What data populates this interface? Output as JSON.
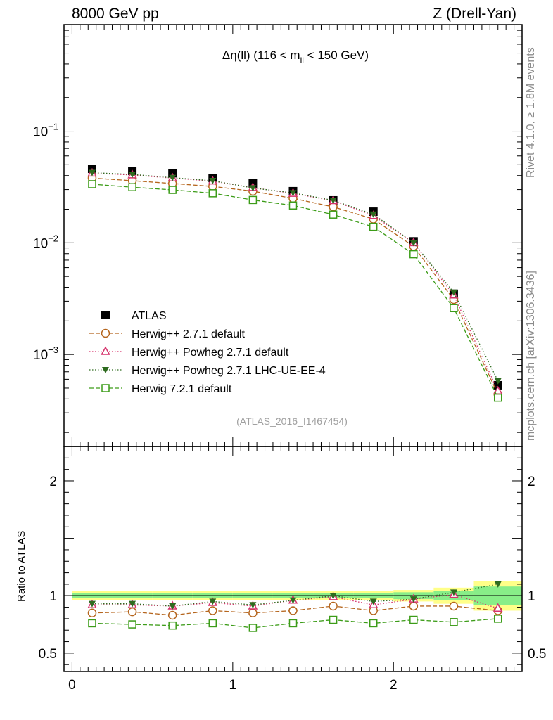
{
  "header": {
    "left": "8000 GeV pp",
    "right": "Z (Drell-Yan)"
  },
  "side_labels": {
    "rivet": "Rivet 4.1.0, ≥ 1.8M events",
    "mcplots": "mcplots.cern.ch [arXiv:1306.3436]"
  },
  "colors": {
    "atlas": "#000000",
    "herwig271": "#b5651d",
    "powheg": "#d6336c",
    "powheg_ue": "#2e6b1f",
    "herwig721": "#3c9c18",
    "band_yellow": "#ffff88",
    "band_green": "#88ee88"
  },
  "chart_data": [
    {
      "type": "line",
      "panel": "main",
      "title": "Δη(ll) (116 < m_ll < 150 GeV)",
      "title_main": "Δη(ll) (116 < m",
      "title_sub": "ll",
      "title_end": " < 150 GeV)",
      "yscale": "log",
      "ylim": [
        0.00015,
        0.9
      ],
      "xlim": [
        -0.05,
        2.8
      ],
      "y_ticks": [
        {
          "value": 0.1,
          "base": "10",
          "exp": "−1"
        },
        {
          "value": 0.01,
          "base": "10",
          "exp": "−2"
        },
        {
          "value": 0.001,
          "base": "10",
          "exp": "−3"
        }
      ],
      "x": [
        0.125,
        0.375,
        0.625,
        0.875,
        1.125,
        1.375,
        1.625,
        1.875,
        2.125,
        2.375,
        2.65
      ],
      "series": [
        {
          "name": "ATLAS",
          "key": "atlas",
          "marker": "square-filled",
          "linestyle": "none",
          "values": [
            0.046,
            0.044,
            0.042,
            0.038,
            0.034,
            0.029,
            0.024,
            0.019,
            0.0103,
            0.0035,
            0.00053
          ]
        },
        {
          "name": "Herwig++ 2.7.1 default",
          "key": "herwig271",
          "marker": "circle-open",
          "linestyle": "dashed",
          "values": [
            0.038,
            0.036,
            0.034,
            0.032,
            0.029,
            0.025,
            0.021,
            0.0163,
            0.0093,
            0.0031,
            0.00044
          ]
        },
        {
          "name": "Herwig++ Powheg 2.7.1 default",
          "key": "powheg",
          "marker": "triangle-open",
          "linestyle": "dotted",
          "values": [
            0.042,
            0.0405,
            0.038,
            0.0357,
            0.0312,
            0.0277,
            0.0238,
            0.0175,
            0.01,
            0.0034,
            0.00047
          ]
        },
        {
          "name": "Herwig++ Powheg 2.7.1 LHC-UE-EE-4",
          "key": "powheg_ue",
          "marker": "triangle-down-filled",
          "linestyle": "dotted",
          "values": [
            0.0425,
            0.041,
            0.0383,
            0.036,
            0.031,
            0.028,
            0.024,
            0.018,
            0.01,
            0.0036,
            0.00058
          ]
        },
        {
          "name": "Herwig 7.2.1 default",
          "key": "herwig721",
          "marker": "square-open",
          "linestyle": "dashed",
          "values": [
            0.0335,
            0.0315,
            0.0298,
            0.0278,
            0.0242,
            0.0216,
            0.0179,
            0.0139,
            0.0079,
            0.0026,
            0.00041
          ]
        }
      ],
      "annotation": "(ATLAS_2016_I1467454)",
      "legend": "left-bottom"
    },
    {
      "type": "line",
      "panel": "ratio",
      "ylabel": "Ratio to ATLAS",
      "ylim": [
        0.34,
        2.3
      ],
      "xlim": [
        -0.05,
        2.8
      ],
      "y_ticks": [
        {
          "value": 0.5,
          "label": "0.5"
        },
        {
          "value": 1,
          "label": "1"
        },
        {
          "value": 2,
          "label": "2"
        }
      ],
      "x_ticks": [
        {
          "value": 0,
          "label": "0"
        },
        {
          "value": 1,
          "label": "1"
        },
        {
          "value": 2,
          "label": "2"
        }
      ],
      "x_edges": [
        0,
        0.25,
        0.5,
        0.75,
        1.0,
        1.25,
        1.5,
        1.75,
        2.0,
        2.25,
        2.5,
        2.8
      ],
      "band_yellow_half": [
        0.04,
        0.04,
        0.04,
        0.04,
        0.04,
        0.04,
        0.04,
        0.04,
        0.05,
        0.07,
        0.13
      ],
      "band_green_half": [
        0.02,
        0.02,
        0.02,
        0.02,
        0.02,
        0.02,
        0.02,
        0.02,
        0.03,
        0.04,
        0.08
      ],
      "x": [
        0.125,
        0.375,
        0.625,
        0.875,
        1.125,
        1.375,
        1.625,
        1.875,
        2.125,
        2.375,
        2.65
      ],
      "series": [
        {
          "name": "Herwig++ 2.7.1 default",
          "key": "herwig271",
          "marker": "circle-open",
          "linestyle": "dashed",
          "values": [
            0.85,
            0.86,
            0.83,
            0.87,
            0.85,
            0.87,
            0.91,
            0.87,
            0.91,
            0.91,
            0.87
          ]
        },
        {
          "name": "Herwig++ Powheg 2.7.1 default",
          "key": "powheg",
          "marker": "triangle-open",
          "linestyle": "dotted",
          "values": [
            0.92,
            0.92,
            0.91,
            0.94,
            0.91,
            0.96,
            0.99,
            0.92,
            0.97,
            1.01,
            0.89
          ]
        },
        {
          "name": "Herwig++ Powheg 2.7.1 LHC-UE-EE-4",
          "key": "powheg_ue",
          "marker": "triangle-down-filled",
          "linestyle": "dotted",
          "values": [
            0.93,
            0.93,
            0.91,
            0.95,
            0.92,
            0.96,
            1.0,
            0.95,
            0.97,
            1.03,
            1.1
          ]
        },
        {
          "name": "Herwig 7.2.1 default",
          "key": "herwig721",
          "marker": "square-open",
          "linestyle": "dashed",
          "values": [
            0.76,
            0.75,
            0.74,
            0.76,
            0.72,
            0.76,
            0.79,
            0.76,
            0.79,
            0.77,
            0.8
          ]
        }
      ]
    }
  ]
}
